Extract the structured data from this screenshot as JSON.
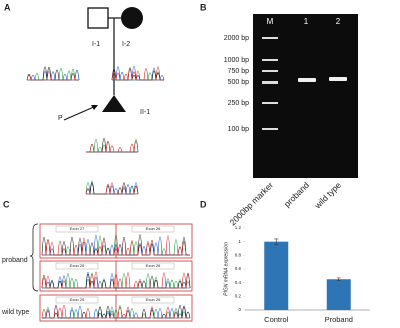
{
  "panels": {
    "a": {
      "label": "A",
      "individuals": [
        "I-1",
        "I-2",
        "II-1"
      ],
      "proband_marker": "P"
    },
    "b": {
      "label": "B",
      "lane_labels": [
        "M",
        "1",
        "2"
      ],
      "size_markers": [
        "2000 bp",
        "1000 bp",
        "750 bp",
        "500 bp",
        "250 bp",
        "100 bp"
      ],
      "bottom_labels": [
        "2000bp marker",
        "proband",
        "wild type"
      ]
    },
    "c": {
      "label": "C",
      "row_labels": [
        "proband",
        "wild type"
      ],
      "exon_labels": [
        "Exon 27",
        "Exon 26",
        "Exon 25",
        "Exon 26",
        "Exon 25",
        "Exon 26"
      ]
    },
    "d": {
      "label": "D"
    }
  },
  "chart_data": {
    "type": "bar",
    "ylabel": "PIGN mRNA expression",
    "categories": [
      "Control",
      "Proband"
    ],
    "values": [
      1.0,
      0.45
    ],
    "errors": [
      0.04,
      0.02
    ],
    "color": "#2e75b6",
    "ylim": [
      0,
      1.2
    ],
    "yticks": [
      0,
      0.2,
      0.4,
      0.6,
      0.8,
      1,
      1.2
    ],
    "grid": false
  }
}
